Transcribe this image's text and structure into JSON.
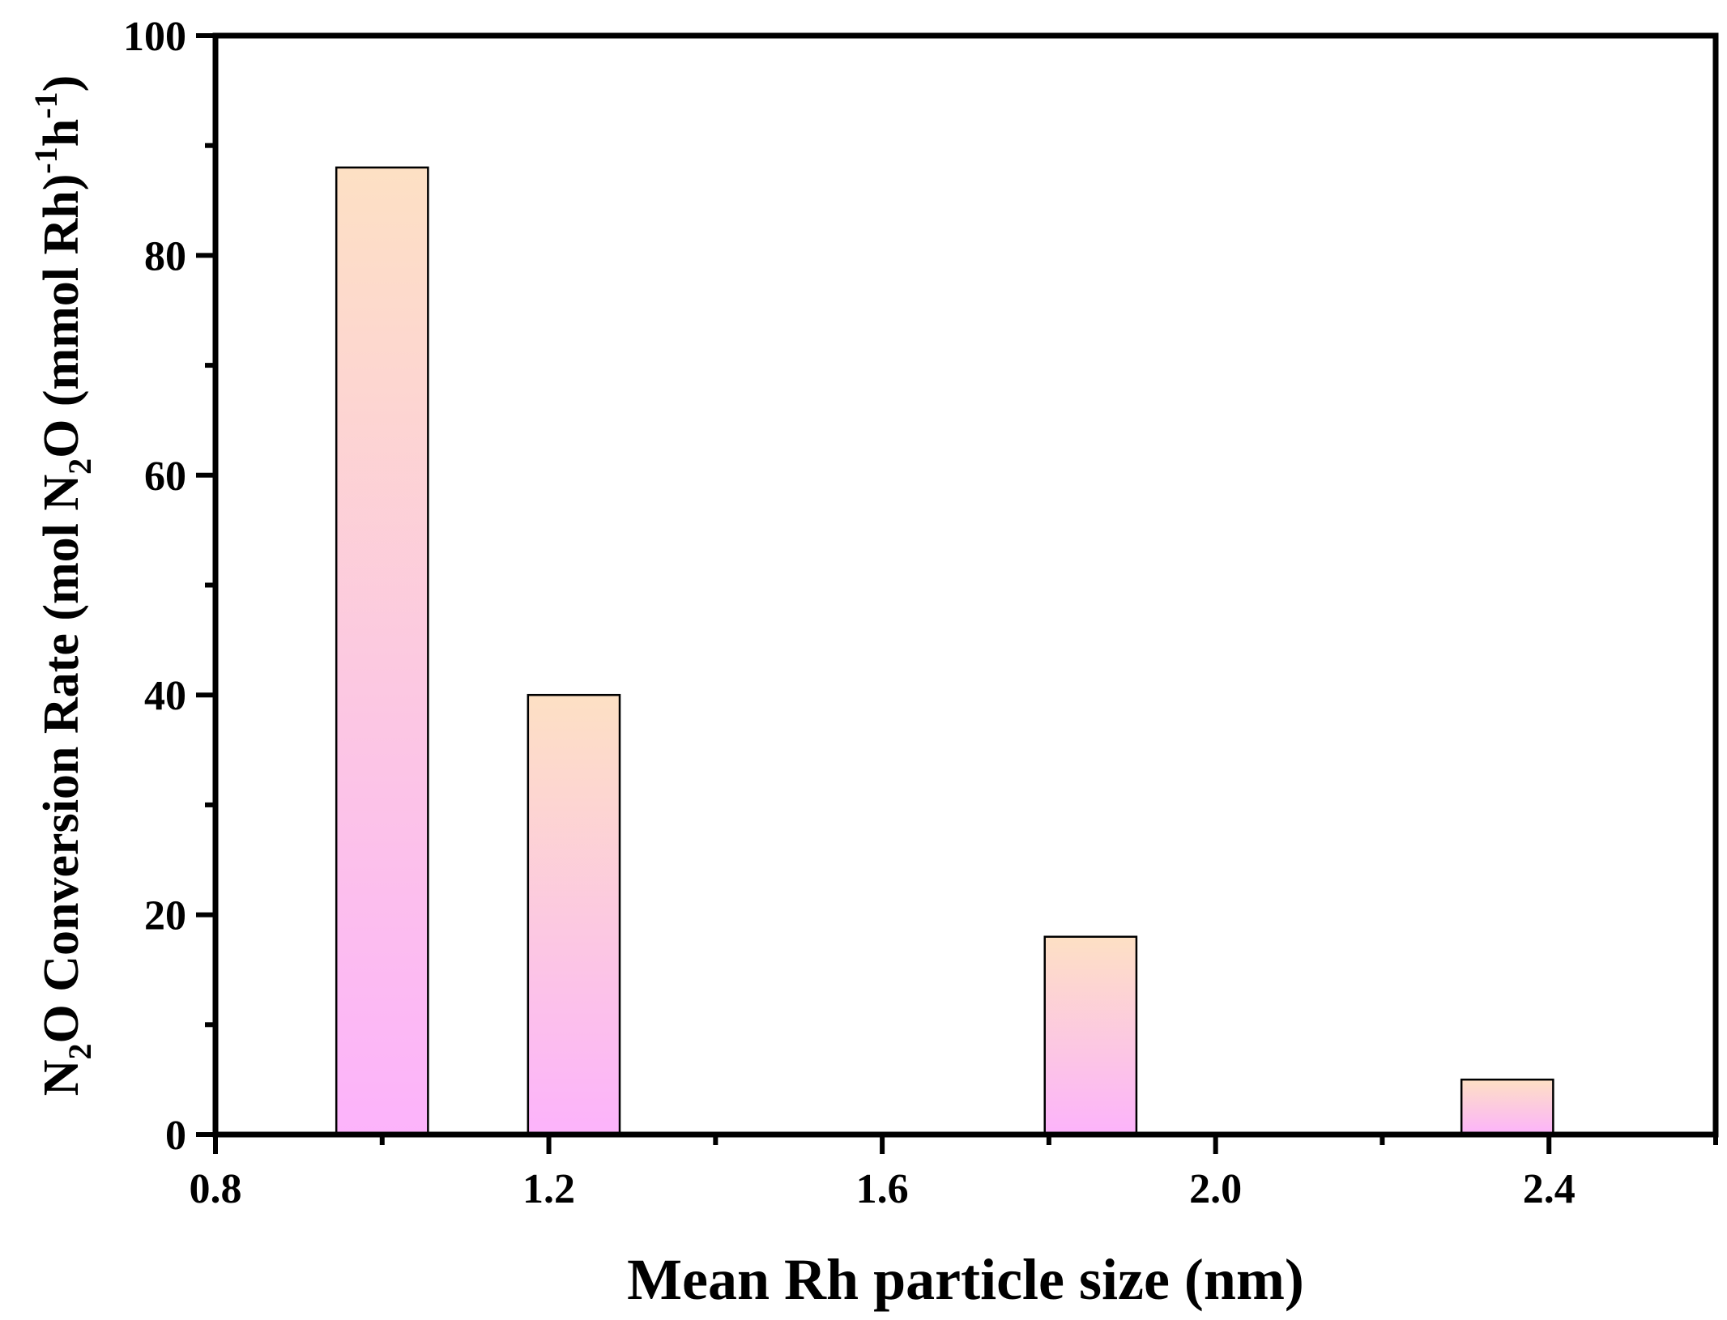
{
  "chart_data": {
    "type": "bar",
    "x": [
      1.0,
      1.23,
      1.85,
      2.35
    ],
    "values": [
      88,
      40,
      18,
      5
    ],
    "bar_width": 0.11,
    "xlim": [
      0.8,
      2.6
    ],
    "ylim": [
      0,
      100
    ],
    "x_ticks": [
      "0.8",
      "1.2",
      "1.6",
      "2.0",
      "2.4"
    ],
    "x_tick_values": [
      0.8,
      1.2,
      1.6,
      2.0,
      2.4
    ],
    "y_ticks": [
      "0",
      "20",
      "40",
      "60",
      "80",
      "100"
    ],
    "y_tick_values": [
      0,
      20,
      40,
      60,
      80,
      100
    ],
    "xlabel": "Mean Rh particle size (nm)",
    "ylabel_parts": {
      "p1": "N",
      "s1": "2",
      "p2": "O Conversion Rate (mol N",
      "s2": "2",
      "p3": "O (mmol Rh)",
      "s3": "-1",
      "p4": "h",
      "s4": "-1",
      "p5": ")"
    },
    "grid": false,
    "bar_gradient": {
      "top": "#fde0c4",
      "bottom": "#fcb3fb"
    }
  }
}
